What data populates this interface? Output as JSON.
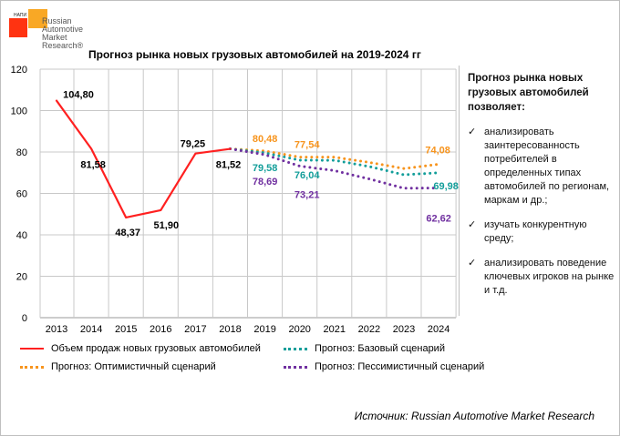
{
  "logo": {
    "badge": "НАПИ",
    "text": "Russian Automotive Market Research®"
  },
  "chart_data": {
    "type": "line",
    "title": "Прогноз рынка новых грузовых автомобилей на 2019-2024 гг",
    "xlabel": "",
    "ylabel": "",
    "ylim": [
      0,
      120
    ],
    "yticks": [
      "0",
      "20",
      "40",
      "60",
      "80",
      "100",
      "120"
    ],
    "categories": [
      "2013",
      "2014",
      "2015",
      "2016",
      "2017",
      "2018",
      "2019",
      "2020",
      "2021",
      "2022",
      "2023",
      "2024"
    ],
    "grid": true,
    "legend_position": "bottom",
    "series": [
      {
        "name": "Объем продаж новых грузовых автомобилей",
        "color": "#ff2020",
        "style": "solid",
        "values": [
          104.8,
          81.58,
          48.37,
          51.9,
          79.25,
          81.52,
          null,
          null,
          null,
          null,
          null,
          null
        ],
        "labels": [
          "104,80",
          "81,58",
          "48,37",
          "51,90",
          "79,25",
          "81,52",
          null,
          null,
          null,
          null,
          null,
          null
        ],
        "label_color": "#000000"
      },
      {
        "name": "Прогноз: Оптимистичный сценарий",
        "color": "#f7941d",
        "style": "dotted",
        "values": [
          null,
          null,
          null,
          null,
          null,
          81.52,
          80.48,
          77.54,
          77.5,
          75.0,
          72.0,
          74.08
        ],
        "labels": [
          null,
          null,
          null,
          null,
          null,
          null,
          "80,48",
          "77,54",
          null,
          null,
          null,
          "74,08"
        ],
        "label_color": "#f7941d"
      },
      {
        "name": "Прогноз: Базовый сценарий",
        "color": "#139e9a",
        "style": "dotted",
        "values": [
          null,
          null,
          null,
          null,
          null,
          81.52,
          79.58,
          76.04,
          76.0,
          73.0,
          69.0,
          69.98
        ],
        "labels": [
          null,
          null,
          null,
          null,
          null,
          null,
          "79,58",
          "76,04",
          null,
          null,
          null,
          "69,98"
        ],
        "label_color": "#139e9a"
      },
      {
        "name": "Прогноз: Пессимистичный сценарий",
        "color": "#7030a0",
        "style": "dotted",
        "values": [
          null,
          null,
          null,
          null,
          null,
          81.52,
          78.69,
          73.21,
          71.0,
          67.0,
          62.5,
          62.62
        ],
        "labels": [
          null,
          null,
          null,
          null,
          null,
          null,
          "78,69",
          "73,21",
          null,
          null,
          null,
          "62,62"
        ],
        "label_color": "#7030a0"
      }
    ]
  },
  "side": {
    "heading": "Прогноз рынка новых грузовых автомобилей позволяет:",
    "check": "✓",
    "items": [
      "анализировать заинтересованность потребителей в определенных типах автомобилей по регионам, маркам и др.;",
      "изучать конкурентную среду;",
      "анализировать поведение ключевых игроков на рынке и т.д."
    ]
  },
  "source": "Источник: Russian Automotive Market Research"
}
